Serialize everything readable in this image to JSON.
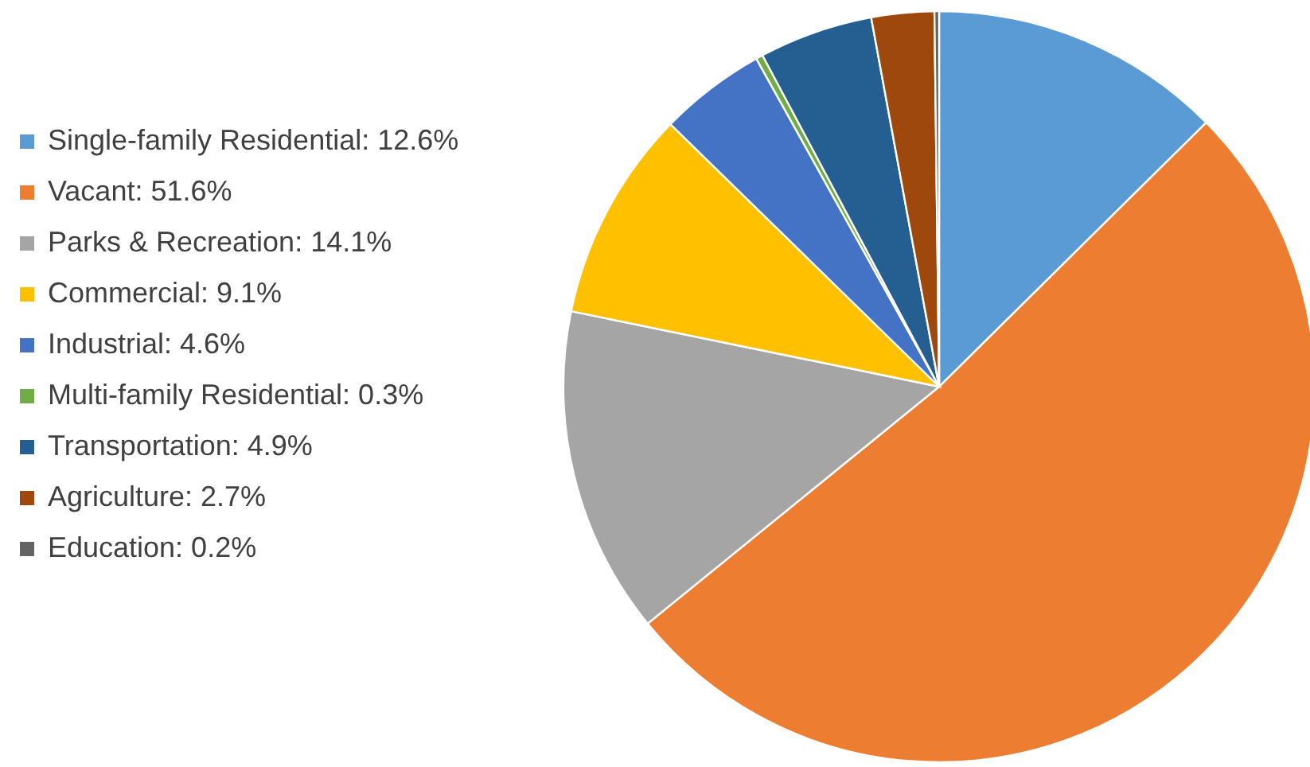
{
  "chart_data": {
    "type": "pie",
    "categories": [
      "Single-family Residential: 12.6%",
      "Vacant: 51.6%",
      "Parks & Recreation: 14.1%",
      "Commercial: 9.1%",
      "Industrial: 4.6%",
      "Multi-family Residential: 0.3%",
      "Transportation: 4.9%",
      "Agriculture: 2.7%",
      "Education: 0.2%"
    ],
    "values": [
      12.6,
      51.6,
      14.1,
      9.1,
      4.6,
      0.3,
      4.9,
      2.7,
      0.2
    ],
    "colors": [
      "#5b9bd5",
      "#ed7d31",
      "#a5a5a5",
      "#ffc000",
      "#4472c4",
      "#70ad47",
      "#255e91",
      "#9e480e",
      "#636363"
    ],
    "legend": "left"
  }
}
